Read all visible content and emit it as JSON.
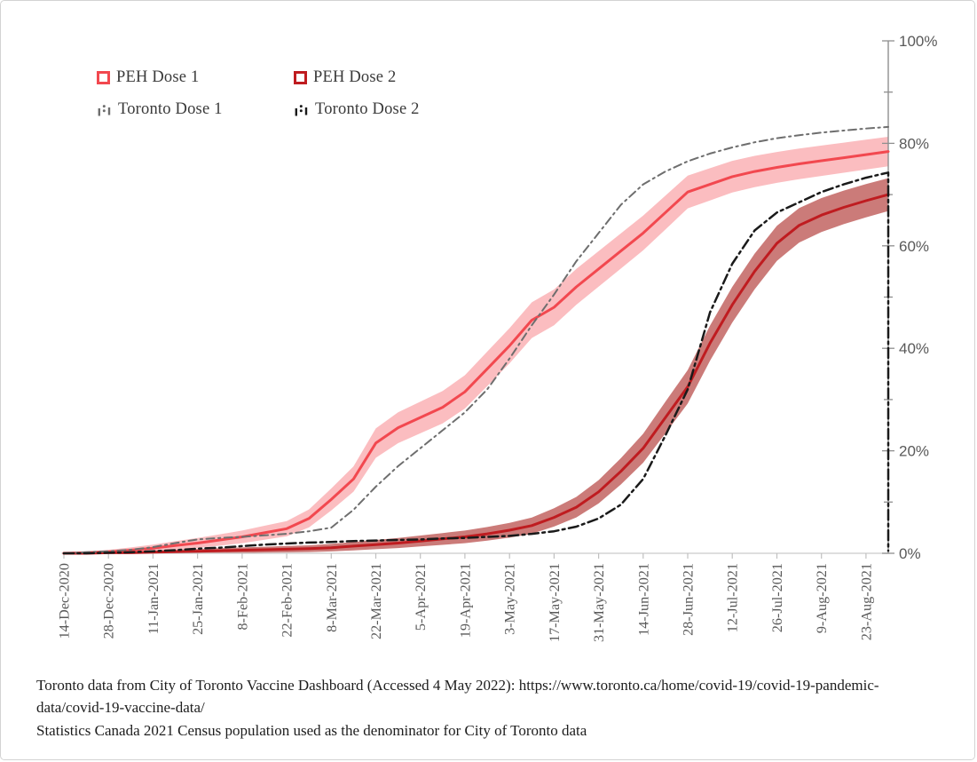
{
  "chart_data": {
    "type": "line",
    "title": "",
    "x_axis": {
      "tick_labels": [
        "14-Dec-2020",
        "28-Dec-2020",
        "11-Jan-2021",
        "25-Jan-2021",
        "8-Feb-2021",
        "22-Feb-2021",
        "8-Mar-2021",
        "22-Mar-2021",
        "5-Apr-2021",
        "19-Apr-2021",
        "3-May-2021",
        "17-May-2021",
        "31-May-2021",
        "14-Jun-2021",
        "28-Jun-2021",
        "12-Jul-2021",
        "26-Jul-2021",
        "9-Aug-2021",
        "23-Aug-2021"
      ],
      "weekly_dates": [
        "14-Dec-2020",
        "21-Dec-2020",
        "28-Dec-2020",
        "4-Jan-2021",
        "11-Jan-2021",
        "18-Jan-2021",
        "25-Jan-2021",
        "1-Feb-2021",
        "8-Feb-2021",
        "15-Feb-2021",
        "22-Feb-2021",
        "1-Mar-2021",
        "8-Mar-2021",
        "15-Mar-2021",
        "22-Mar-2021",
        "29-Mar-2021",
        "5-Apr-2021",
        "12-Apr-2021",
        "19-Apr-2021",
        "26-Apr-2021",
        "3-May-2021",
        "10-May-2021",
        "17-May-2021",
        "24-May-2021",
        "31-May-2021",
        "7-Jun-2021",
        "14-Jun-2021",
        "21-Jun-2021",
        "28-Jun-2021",
        "5-Jul-2021",
        "12-Jul-2021",
        "19-Jul-2021",
        "26-Jul-2021",
        "2-Aug-2021",
        "9-Aug-2021",
        "16-Aug-2021",
        "23-Aug-2021",
        "30-Aug-2021"
      ]
    },
    "y_axis": {
      "labels": [
        "0%",
        "20%",
        "40%",
        "60%",
        "80%",
        "100%"
      ],
      "range": [
        0,
        100
      ],
      "major_tick_step": 20,
      "minor_tick_step": 10,
      "position": "right"
    },
    "series": [
      {
        "name": "PEH Dose 1",
        "style": "line-with-ci-band",
        "line_color": "#f2484f",
        "band_color": "#fbbdc0",
        "dash": "solid",
        "ci_halfwidth_rule": "7*sqrt(p*(1-p)) percentage points",
        "values_pct": [
          0,
          0.1,
          0.3,
          0.6,
          1.0,
          1.5,
          2.0,
          2.6,
          3.2,
          4.0,
          4.8,
          6.8,
          10.5,
          14.5,
          21.5,
          24.5,
          26.5,
          28.5,
          31.5,
          36.0,
          40.5,
          45.5,
          48.0,
          52.0,
          55.5,
          59.0,
          62.5,
          66.5,
          70.5,
          72.0,
          73.5,
          74.5,
          75.3,
          76.0,
          76.6,
          77.2,
          77.8,
          78.4
        ]
      },
      {
        "name": "PEH Dose 2",
        "style": "line-with-ci-band",
        "line_color": "#bf1c20",
        "band_color": "#cb7b79",
        "dash": "solid",
        "ci_halfwidth_rule": "7*sqrt(p*(1-p)) percentage points",
        "values_pct": [
          0,
          0,
          0.1,
          0.1,
          0.2,
          0.3,
          0.4,
          0.5,
          0.6,
          0.7,
          0.8,
          0.9,
          1.1,
          1.4,
          1.7,
          2.0,
          2.4,
          2.8,
          3.2,
          3.8,
          4.5,
          5.4,
          7.0,
          9.0,
          12.0,
          16.0,
          20.5,
          26.5,
          32.5,
          41.0,
          48.5,
          55.0,
          60.5,
          64.0,
          66.0,
          67.5,
          68.8,
          70.0
        ]
      },
      {
        "name": "Toronto Dose 1",
        "style": "line",
        "line_color": "#6e6e6e",
        "dash": "dash-dot",
        "values_pct": [
          0,
          0.2,
          0.4,
          0.7,
          1.2,
          2.0,
          2.7,
          3.0,
          3.2,
          3.5,
          3.8,
          4.3,
          5.0,
          8.5,
          13.0,
          17.0,
          20.5,
          24.0,
          27.5,
          32.0,
          38.0,
          44.5,
          50.5,
          57.0,
          62.5,
          68.0,
          72.0,
          74.5,
          76.5,
          78.0,
          79.2,
          80.2,
          81.0,
          81.6,
          82.1,
          82.5,
          82.9,
          83.2
        ]
      },
      {
        "name": "Toronto Dose 2",
        "style": "line",
        "line_color": "#1a1a1a",
        "dash": "dash-dot",
        "end_drop_to_zero": true,
        "values_pct": [
          0,
          0,
          0.1,
          0.2,
          0.4,
          0.6,
          0.9,
          1.1,
          1.4,
          1.7,
          1.9,
          2.1,
          2.2,
          2.4,
          2.5,
          2.6,
          2.7,
          2.9,
          3.0,
          3.2,
          3.4,
          3.8,
          4.3,
          5.2,
          6.8,
          9.5,
          14.5,
          23.0,
          32.0,
          47.0,
          56.5,
          63.0,
          66.5,
          68.5,
          70.5,
          72.0,
          73.3,
          74.3
        ]
      }
    ],
    "legend": {
      "position": "top-left",
      "items": [
        {
          "label": "PEH Dose 1",
          "marker": "square-outline",
          "color": "#f2484f"
        },
        {
          "label": "PEH Dose 2",
          "marker": "square-outline",
          "color": "#bf1c20"
        },
        {
          "label": "Toronto Dose 1",
          "marker": "dash-dot-sample",
          "color": "#6e6e6e"
        },
        {
          "label": "Toronto Dose 2",
          "marker": "dash-dot-sample",
          "color": "#1a1a1a"
        }
      ]
    },
    "style_colors": {
      "x_axis_line": "#c9c9c9",
      "x_tick": "#c0c0c0",
      "y_axis_line": "#8f8f8f",
      "tick_label": "#595959"
    }
  },
  "footer": {
    "notes": [
      "Toronto data from City of Toronto Vaccine Dashboard (Accessed 4 May 2022): https://www.toronto.ca/home/covid-19/covid-19-pandemic-data/covid-19-vaccine-data/",
      "Statistics Canada 2021 Census population used as the denominator for City of Toronto data"
    ]
  }
}
